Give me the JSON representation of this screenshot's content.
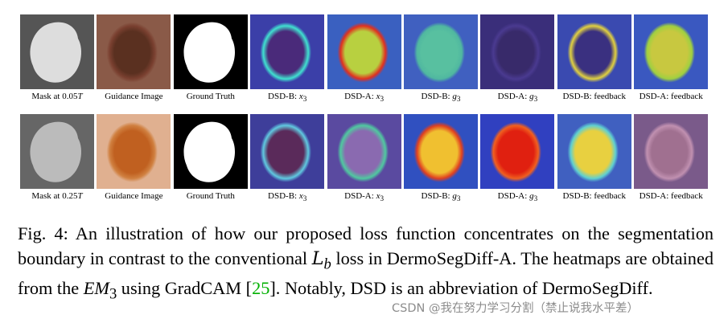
{
  "figure": {
    "rows": [
      {
        "labels": [
          {
            "text": "Mask at 0.05",
            "math": "T"
          },
          {
            "text": "Guidance Image"
          },
          {
            "text": "Ground Truth"
          },
          {
            "text": "DSD-B: ",
            "math": "x",
            "sub": "3"
          },
          {
            "text": "DSD-A: ",
            "math": "x",
            "sub": "3"
          },
          {
            "text": "DSD-B: ",
            "math": "g",
            "sub": "3"
          },
          {
            "text": "DSD-A: ",
            "math": "g",
            "sub": "3"
          },
          {
            "text": "DSD-B: feedback"
          },
          {
            "text": "DSD-A: feedback"
          }
        ]
      },
      {
        "labels": [
          {
            "text": "Mask at 0.25",
            "math": "T"
          },
          {
            "text": "Guidance Image"
          },
          {
            "text": "Ground Truth"
          },
          {
            "text": "DSD-B: ",
            "math": "x",
            "sub": "3"
          },
          {
            "text": "DSD-A: ",
            "math": "x",
            "sub": "3"
          },
          {
            "text": "DSD-B: ",
            "math": "g",
            "sub": "3"
          },
          {
            "text": "DSD-A: ",
            "math": "g",
            "sub": "3"
          },
          {
            "text": "DSD-B: feedback"
          },
          {
            "text": "DSD-A: feedback"
          }
        ]
      }
    ],
    "caption": {
      "part1": "Fig. 4: An illustration of how our proposed loss function concentrates on the segmentation boundary in contrast to the conventional ",
      "loss_symbol": "L",
      "loss_sub": "b",
      "part2": " loss in DermoSegDiff-A. The heatmaps are obtained from the ",
      "em_symbol": "EM",
      "em_sub": "3",
      "part3": " using GradCAM [",
      "ref": "25",
      "part4": "]. Notably, DSD is an abbreviation of DermoSegDiff."
    },
    "watermark": "CSDN @我在努力学习分割（禁止说我水平差）"
  }
}
